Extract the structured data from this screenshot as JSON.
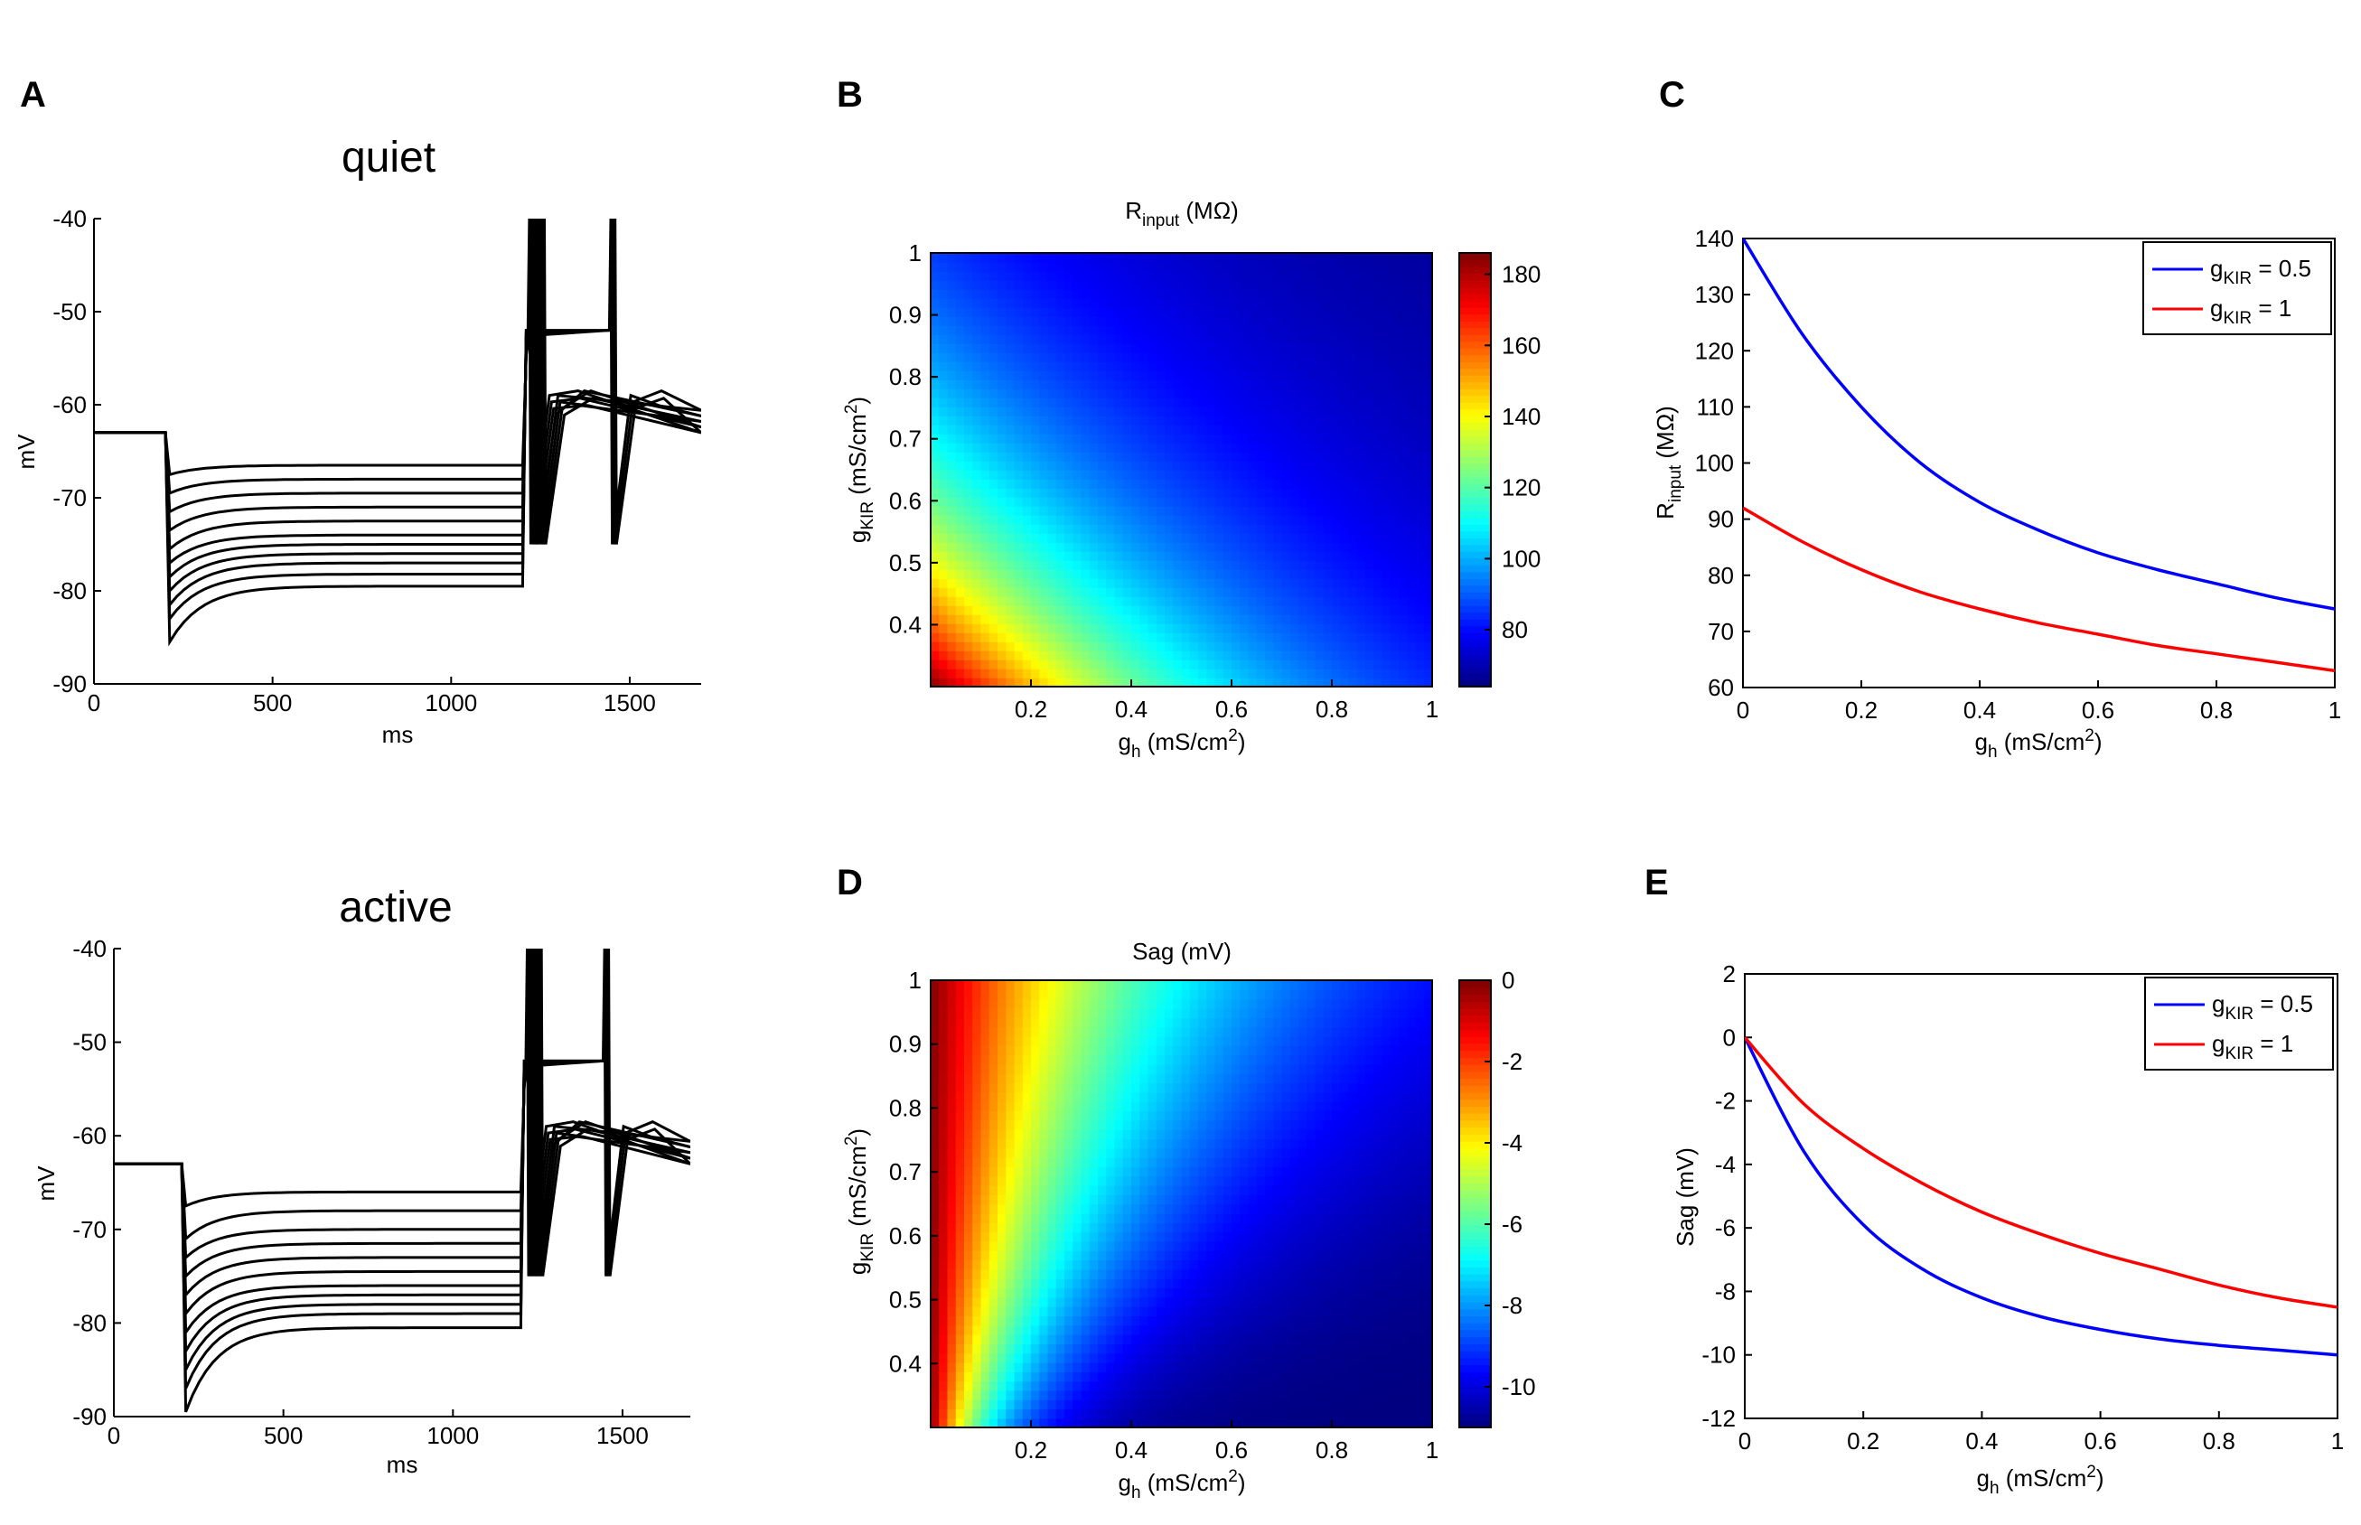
{
  "panel_labels": [
    "A",
    "B",
    "C",
    "D",
    "E"
  ],
  "chart_data": [
    {
      "id": "A-quiet",
      "type": "line",
      "title": "quiet",
      "xlabel": "ms",
      "ylabel": "mV",
      "xlim": [
        0,
        1700
      ],
      "ylim": [
        -90,
        -40
      ],
      "xticks": [
        0,
        500,
        1000,
        1500
      ],
      "yticks": [
        -90,
        -80,
        -70,
        -60,
        -50,
        -40
      ],
      "resting_mV": -63,
      "step_on_ms": 200,
      "step_off_ms": 1200,
      "peak_mV": [
        -67.5,
        -69.5,
        -71.5,
        -73.5,
        -75.5,
        -77,
        -78.5,
        -80,
        -81.5,
        -83,
        -85.5
      ],
      "steady_mV": [
        -66.5,
        -68,
        -69.5,
        -71,
        -72.5,
        -74,
        -75,
        -76,
        -77,
        -78.2,
        -79.5
      ],
      "color": "#000000"
    },
    {
      "id": "A-active",
      "type": "line",
      "title": "active",
      "xlabel": "ms",
      "ylabel": "mV",
      "xlim": [
        0,
        1700
      ],
      "ylim": [
        -90,
        -40
      ],
      "xticks": [
        0,
        500,
        1000,
        1500
      ],
      "yticks": [
        -90,
        -80,
        -70,
        -60,
        -50,
        -40
      ],
      "resting_mV": -63,
      "step_on_ms": 200,
      "step_off_ms": 1200,
      "peak_mV": [
        -67.5,
        -71,
        -73,
        -75,
        -77,
        -79,
        -81,
        -83,
        -85,
        -87,
        -89.5
      ],
      "steady_mV": [
        -66,
        -68,
        -70,
        -71.5,
        -73,
        -74.5,
        -76,
        -77,
        -78,
        -79,
        -80.5
      ],
      "color": "#000000"
    },
    {
      "id": "B",
      "type": "heatmap",
      "title": "Rinput (MΩ)",
      "title_main": "R",
      "title_sub": "input",
      "title_rest": " (MΩ)",
      "xlabel_main": "g",
      "xlabel_sub": "h",
      "xlabel_rest": " (mS/cm",
      "xlabel_sup": "2",
      "xlabel_close": ")",
      "ylabel_main": "g",
      "ylabel_sub": "KIR",
      "ylabel_rest": " (mS/cm",
      "ylabel_sup": "2",
      "ylabel_close": ")",
      "xlim": [
        0,
        1
      ],
      "ylim": [
        0.3,
        1
      ],
      "xticks": [
        0.2,
        0.4,
        0.6,
        0.8,
        1
      ],
      "yticks": [
        0.4,
        0.5,
        0.6,
        0.7,
        0.8,
        0.9,
        1
      ],
      "clim": [
        64,
        186
      ],
      "cticks": [
        80,
        100,
        120,
        140,
        160,
        180
      ],
      "colormap": "jet"
    },
    {
      "id": "C",
      "type": "line",
      "xlabel_main": "g",
      "xlabel_sub": "h",
      "xlabel_rest": " (mS/cm",
      "xlabel_sup": "2",
      "xlabel_close": ")",
      "ylabel_main": "R",
      "ylabel_sub": "input",
      "ylabel_rest": " (MΩ)",
      "xlim": [
        0,
        1
      ],
      "ylim": [
        60,
        140
      ],
      "xticks": [
        0,
        0.2,
        0.4,
        0.6,
        0.8,
        1
      ],
      "yticks": [
        60,
        70,
        80,
        90,
        100,
        110,
        120,
        130,
        140
      ],
      "legend": "top-right",
      "x": [
        0,
        0.1,
        0.2,
        0.3,
        0.4,
        0.5,
        0.6,
        0.7,
        0.8,
        0.9,
        1
      ],
      "series": [
        {
          "name_main": "g",
          "name_sub": "KIR",
          "name_rest": " = 0.5",
          "color": "#0000ff",
          "values": [
            140,
            123,
            110,
            100,
            93,
            88,
            84,
            81,
            78.5,
            76,
            74
          ]
        },
        {
          "name_main": "g",
          "name_sub": "KIR",
          "name_rest": " = 1",
          "color": "#ff0000",
          "values": [
            92,
            86,
            81,
            77,
            74,
            71.5,
            69.5,
            67.5,
            66,
            64.5,
            63
          ]
        }
      ]
    },
    {
      "id": "D",
      "type": "heatmap",
      "title": "Sag (mV)",
      "xlabel_main": "g",
      "xlabel_sub": "h",
      "xlabel_rest": " (mS/cm",
      "xlabel_sup": "2",
      "xlabel_close": ")",
      "ylabel_main": "g",
      "ylabel_sub": "KIR",
      "ylabel_rest": " (mS/cm",
      "ylabel_sup": "2",
      "ylabel_close": ")",
      "xlim": [
        0,
        1
      ],
      "ylim": [
        0.3,
        1
      ],
      "xticks": [
        0.2,
        0.4,
        0.6,
        0.8,
        1
      ],
      "yticks": [
        0.4,
        0.5,
        0.6,
        0.7,
        0.8,
        0.9,
        1
      ],
      "clim": [
        -11,
        0
      ],
      "cticks": [
        0,
        -2,
        -4,
        -6,
        -8,
        -10
      ],
      "colormap": "jet"
    },
    {
      "id": "E",
      "type": "line",
      "xlabel_main": "g",
      "xlabel_sub": "h",
      "xlabel_rest": " (mS/cm",
      "xlabel_sup": "2",
      "xlabel_close": ")",
      "ylabel": "Sag (mV)",
      "xlim": [
        0,
        1
      ],
      "ylim": [
        -12,
        2
      ],
      "xticks": [
        0,
        0.2,
        0.4,
        0.6,
        0.8,
        1
      ],
      "yticks": [
        -12,
        -10,
        -8,
        -6,
        -4,
        -2,
        0,
        2
      ],
      "legend": "top-right",
      "x": [
        0,
        0.1,
        0.2,
        0.3,
        0.4,
        0.5,
        0.6,
        0.7,
        0.8,
        0.9,
        1
      ],
      "series": [
        {
          "name_main": "g",
          "name_sub": "KIR",
          "name_rest": " = 0.5",
          "color": "#0000ff",
          "values": [
            0,
            -3.6,
            -5.9,
            -7.3,
            -8.2,
            -8.8,
            -9.2,
            -9.5,
            -9.7,
            -9.85,
            -10
          ]
        },
        {
          "name_main": "g",
          "name_sub": "KIR",
          "name_rest": " = 1",
          "color": "#ff0000",
          "values": [
            0,
            -2.1,
            -3.5,
            -4.6,
            -5.5,
            -6.2,
            -6.8,
            -7.3,
            -7.8,
            -8.2,
            -8.5
          ]
        }
      ]
    }
  ]
}
